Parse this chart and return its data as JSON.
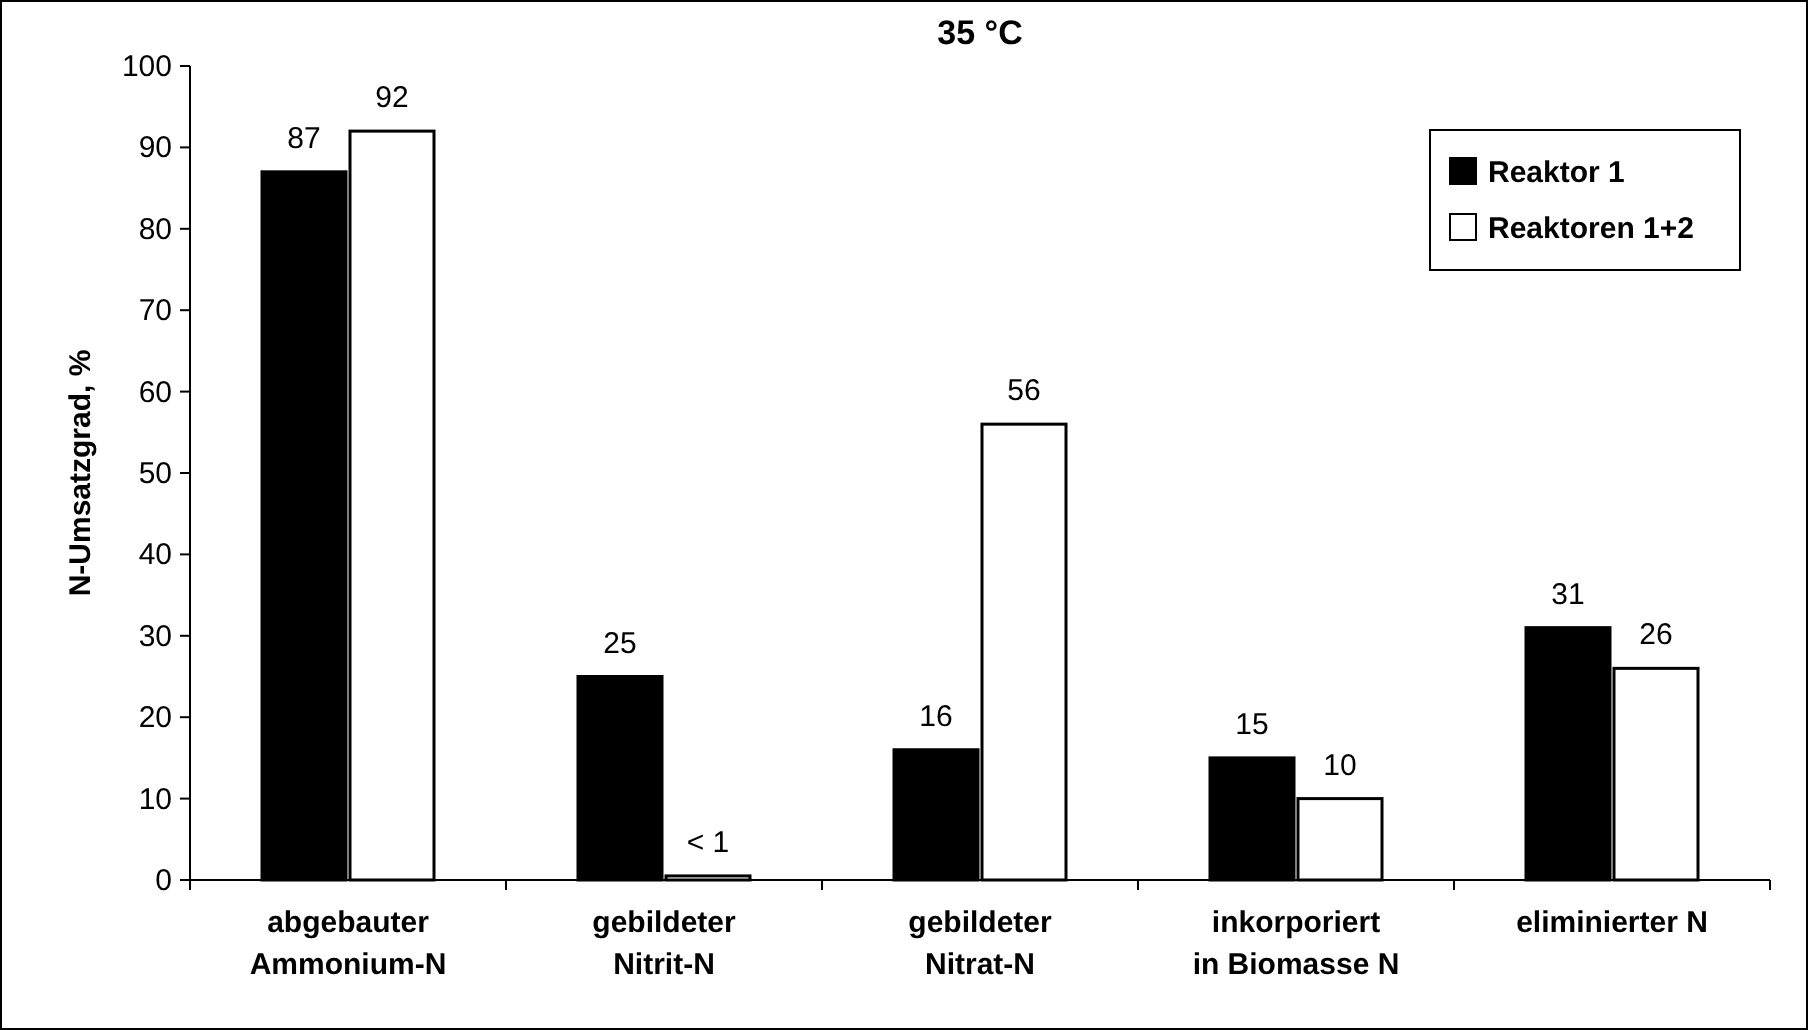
{
  "chart_data": {
    "type": "bar",
    "title": "35 °C",
    "ylabel": "N-Umsatzgrad, %",
    "categories": [
      "abgebauter\nAmmonium-N",
      "gebildeter\nNitrit-N",
      "gebildeter\nNitrat-N",
      "inkorporiert\nin Biomasse N",
      "eliminierter N"
    ],
    "series": [
      {
        "name": "Reaktor 1",
        "color": "#000000",
        "values": [
          87,
          25,
          16,
          15,
          31
        ],
        "value_labels": [
          "87",
          "25",
          "16",
          "15",
          "31"
        ]
      },
      {
        "name": "Reaktoren 1+2",
        "color": "#ffffff",
        "values": [
          92,
          0.5,
          56,
          10,
          26
        ],
        "value_labels": [
          "92",
          "< 1",
          "56",
          "10",
          "26"
        ]
      }
    ],
    "ylim": [
      0,
      100
    ],
    "yticks": [
      0,
      10,
      20,
      30,
      40,
      50,
      60,
      70,
      80,
      90,
      100
    ],
    "grid": false,
    "legend": "top right"
  }
}
